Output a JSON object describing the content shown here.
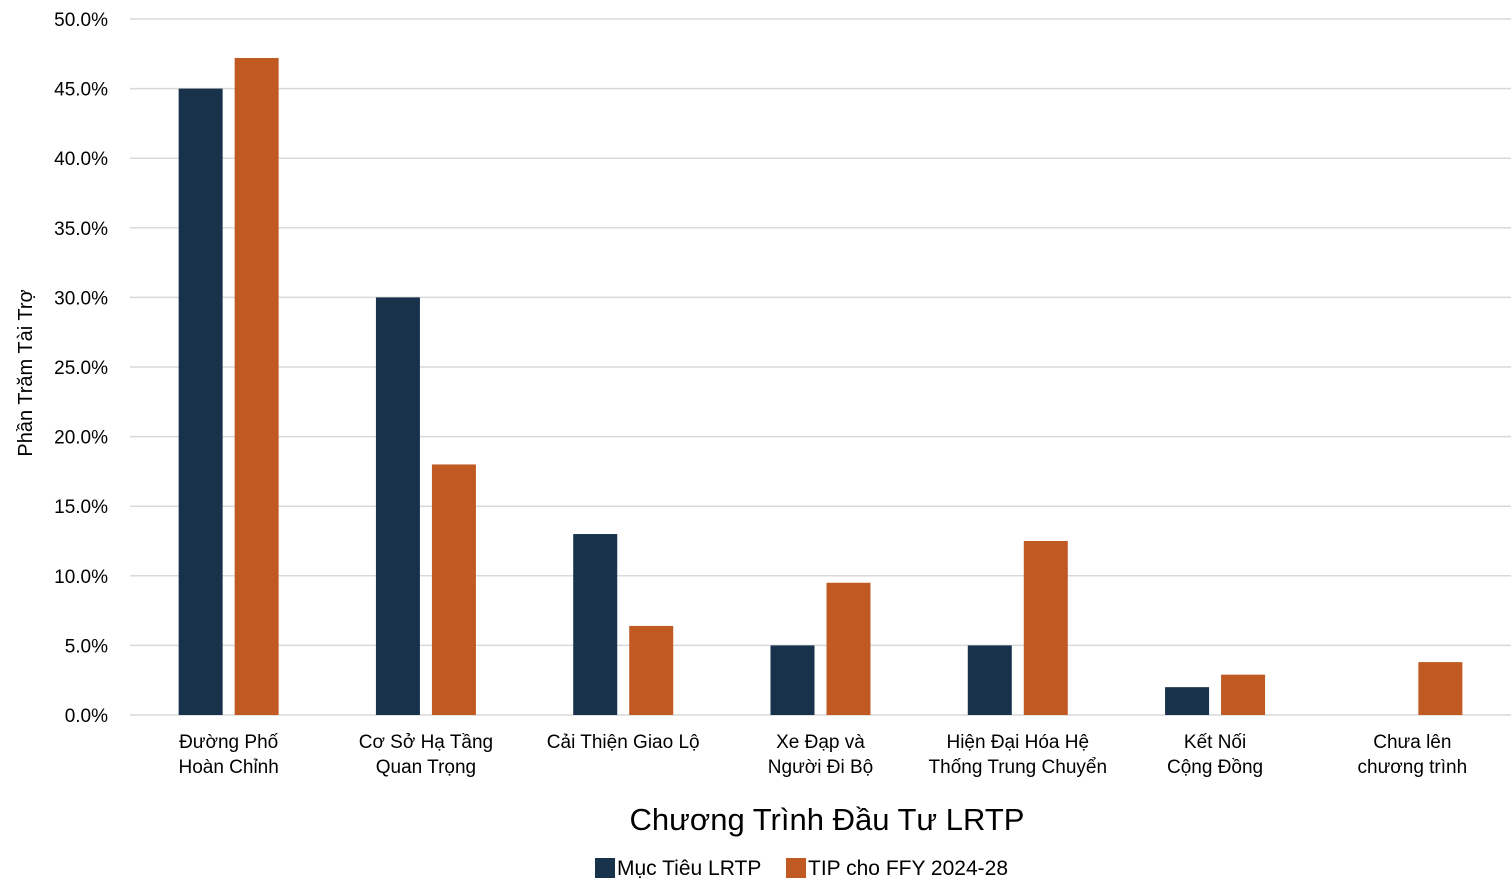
{
  "chart_data": {
    "type": "bar",
    "title": "",
    "xlabel": "Chương Trình Đầu Tư LRTP",
    "ylabel": "Phần Trăm Tài Trợ",
    "categories": [
      [
        "Đường Phố",
        "Hoàn Chỉnh"
      ],
      [
        "Cơ Sở Hạ Tầng",
        "Quan Trọng"
      ],
      [
        "Cải Thiện Giao Lộ"
      ],
      [
        "Xe Đạp và",
        "Người Đi Bộ"
      ],
      [
        "Hiện Đại Hóa Hệ",
        "Thống Trung Chuyển"
      ],
      [
        "Kết Nối",
        "Cộng Đồng"
      ],
      [
        "Chưa lên",
        "chương trình"
      ]
    ],
    "series": [
      {
        "name": "Mục Tiêu LRTP",
        "color": "#17324a",
        "values": [
          45.0,
          30.0,
          13.0,
          5.0,
          5.0,
          2.0,
          0.0
        ]
      },
      {
        "name": "TIP cho FFY 2024-28",
        "color": "#c05a22",
        "values": [
          47.2,
          18.0,
          6.4,
          9.5,
          12.5,
          2.9,
          3.8
        ]
      }
    ],
    "ylim": [
      0,
      50
    ],
    "yticks": [
      "0.0%",
      "5.0%",
      "10.0%",
      "15.0%",
      "20.0%",
      "25.0%",
      "30.0%",
      "35.0%",
      "40.0%",
      "45.0%",
      "50.0%"
    ],
    "grid": true,
    "legend": "bottom"
  }
}
